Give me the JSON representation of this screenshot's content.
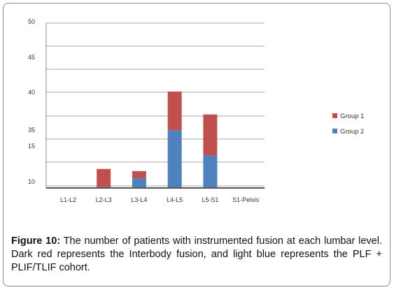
{
  "chart_data": {
    "type": "bar",
    "stacked": true,
    "categories": [
      "L1-L2",
      "L2-L3",
      "L3-L4",
      "L4-L5",
      "L5-S1",
      "S1-Pelvis"
    ],
    "y_tick_labels": [
      "10",
      "15",
      "35",
      "40",
      "45",
      "50"
    ],
    "series": [
      {
        "name": "Group 2",
        "color": "#4f81bd",
        "values": [
          0,
          0.4,
          4,
          24,
          13.5,
          0
        ]
      },
      {
        "name": "Group 1",
        "color": "#c0504d",
        "values": [
          0,
          7.5,
          3,
          16,
          17,
          0
        ]
      }
    ],
    "legend": [
      "Group 1",
      "Group 2"
    ],
    "legend_position": "right",
    "grid": true
  },
  "caption": {
    "label": "Figure 10:",
    "text": " The number of patients with instrumented fusion at each lumbar level. Dark red represents the Interbody fusion, and light blue represents the PLF + PLIF/TLIF cohort."
  }
}
